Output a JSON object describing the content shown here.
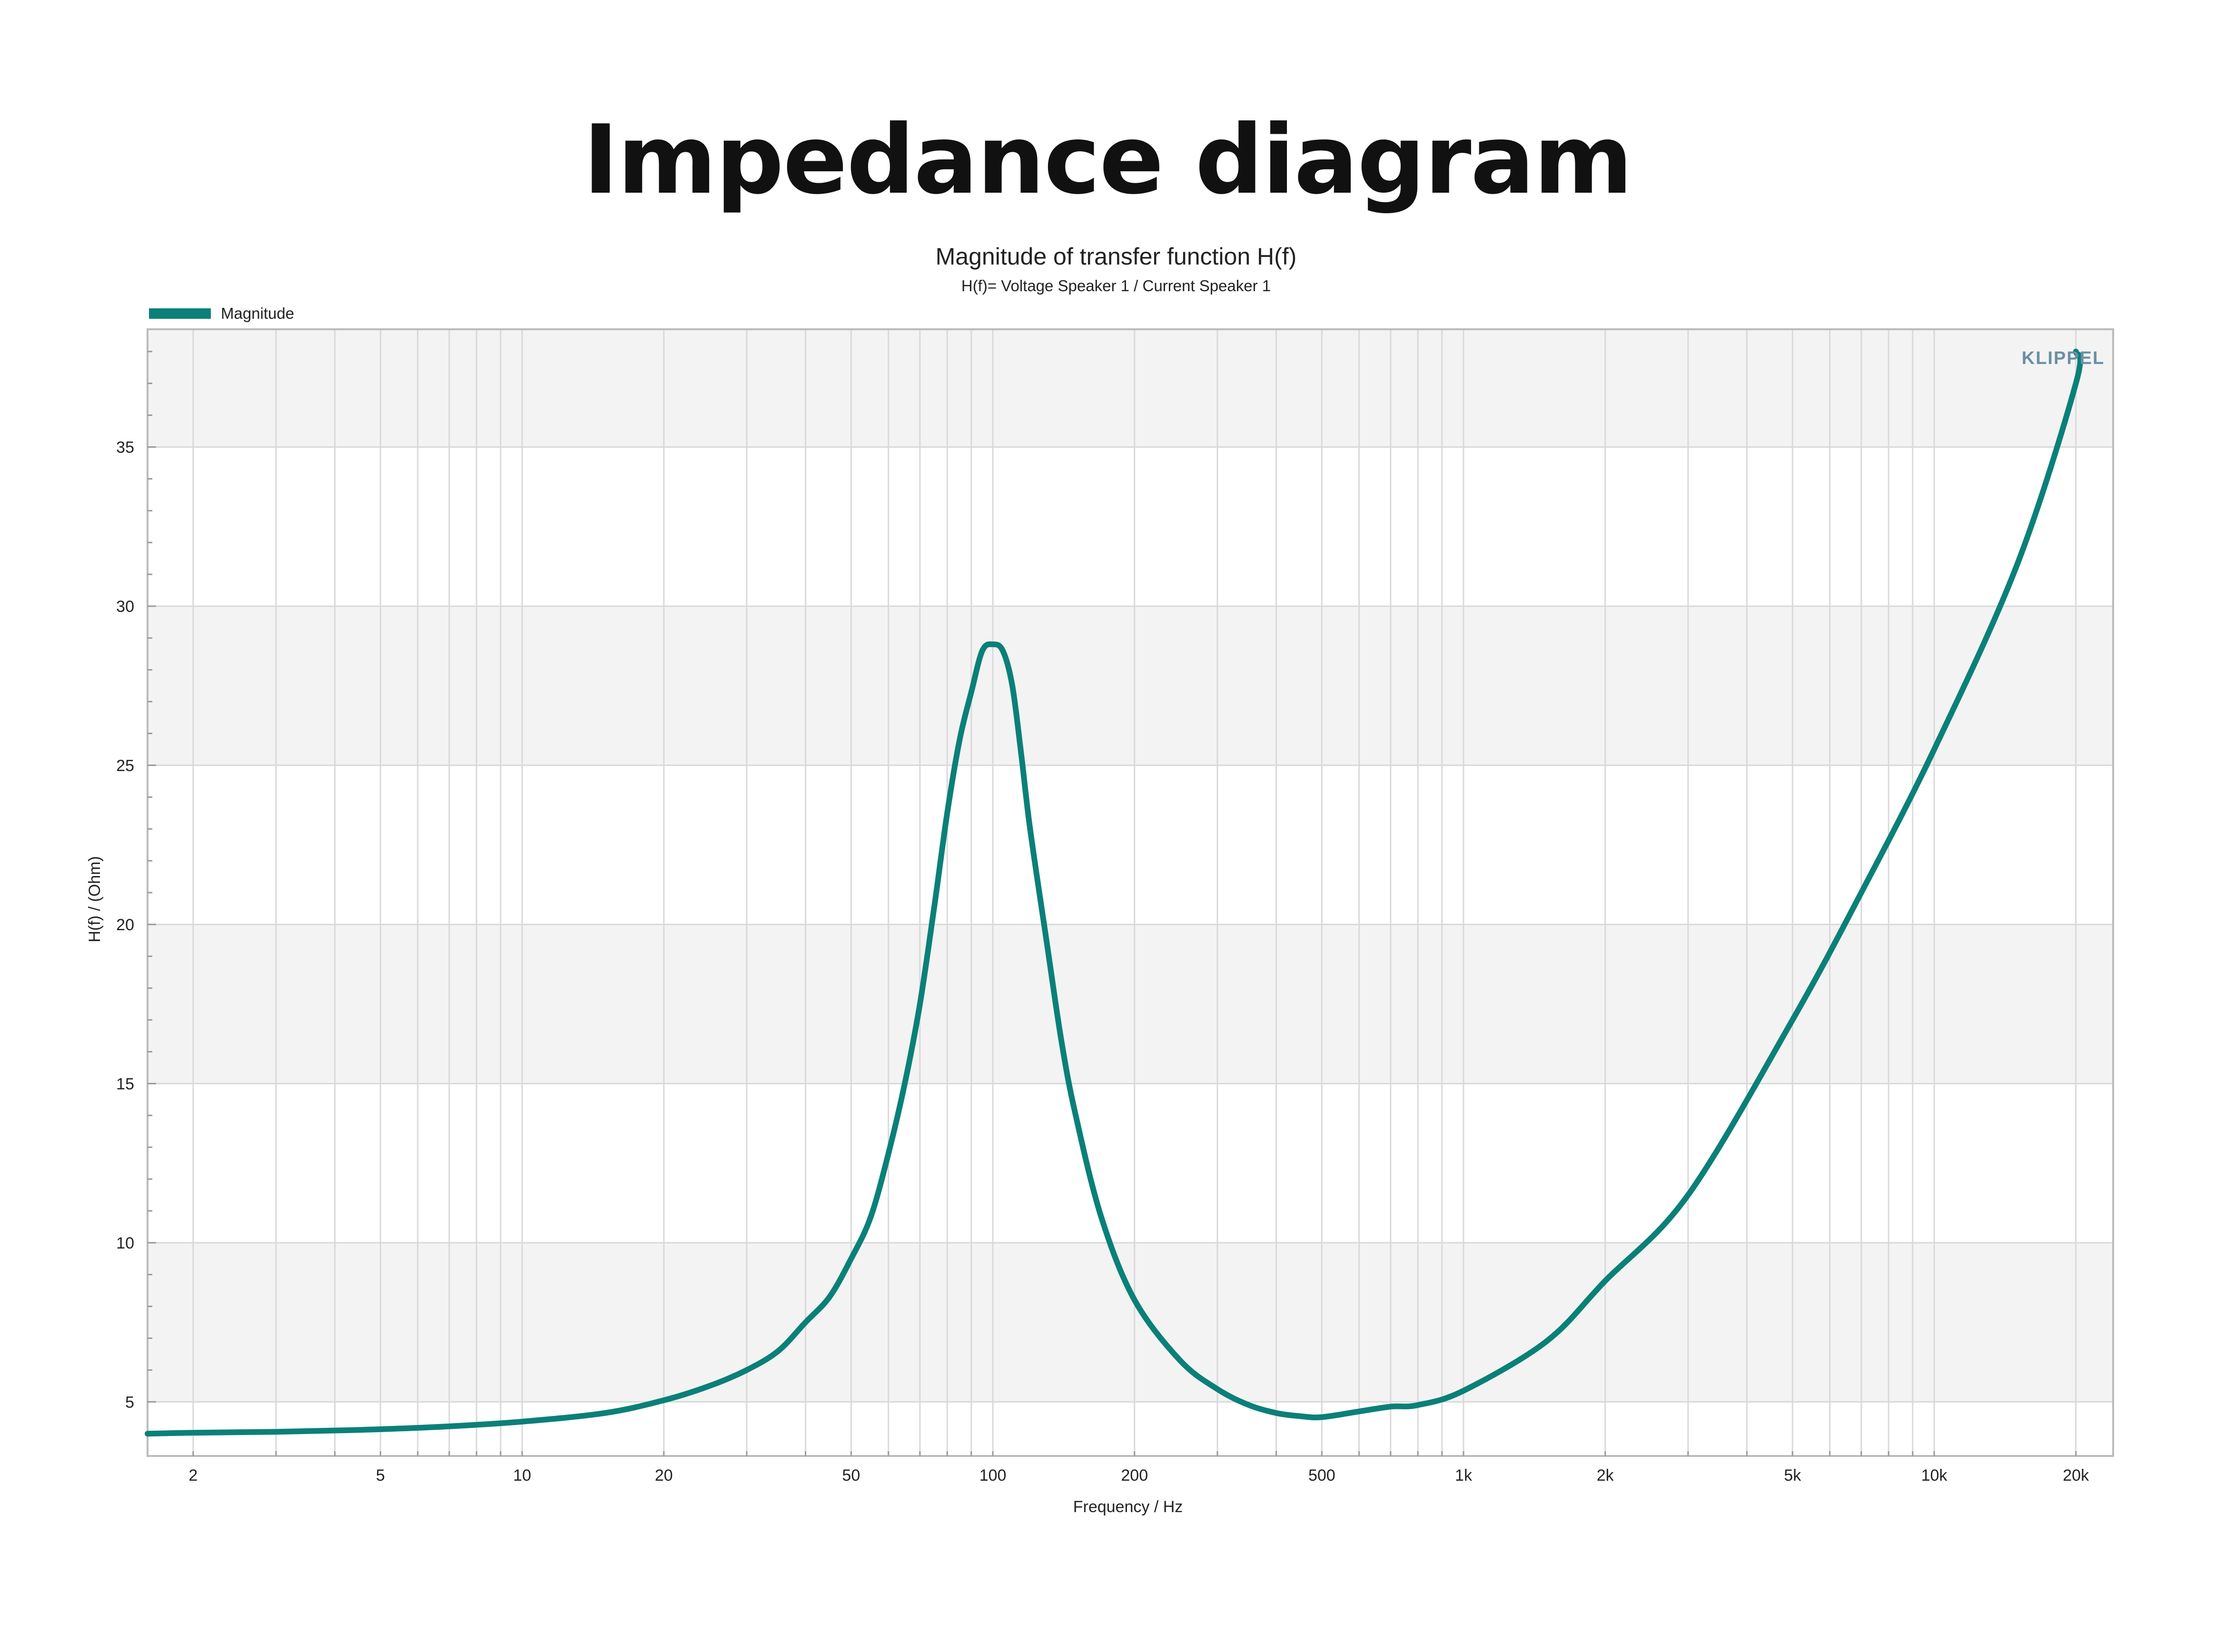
{
  "page_title": "Impedance diagram",
  "logo_text": "KLIPPEL",
  "colors": {
    "series": "#0a8078",
    "band": "#f3f3f3",
    "grid": "#d9d9d9",
    "axis": "#bbbbbb"
  },
  "chart_data": {
    "type": "line",
    "title": "Magnitude of transfer function H(f)",
    "subtitle": "H(f)= Voltage Speaker 1 / Current Speaker 1",
    "xlabel": "Frequency / Hz",
    "ylabel": "H(f) / (Ohm)",
    "xscale": "log",
    "xlim": [
      1.6,
      24000
    ],
    "ylim": [
      3.3,
      38.7
    ],
    "x_ticks": [
      2,
      5,
      10,
      20,
      50,
      100,
      200,
      500,
      1000,
      2000,
      5000,
      10000,
      20000
    ],
    "x_tick_labels": [
      "2",
      "5",
      "10",
      "20",
      "50",
      "100",
      "200",
      "500",
      "1k",
      "2k",
      "5k",
      "10k",
      "20k"
    ],
    "y_ticks": [
      5,
      10,
      15,
      20,
      25,
      30,
      35
    ],
    "y_tick_labels": [
      "5",
      "10",
      "15",
      "20",
      "25",
      "30",
      "35"
    ],
    "grid": true,
    "legend_position": "top-left",
    "series": [
      {
        "name": "Magnitude",
        "x": [
          1.6,
          2,
          3,
          4,
          5,
          7,
          10,
          15,
          20,
          25,
          30,
          35,
          40,
          45,
          50,
          55,
          60,
          65,
          70,
          75,
          80,
          85,
          90,
          95,
          100,
          105,
          110,
          115,
          120,
          130,
          140,
          150,
          170,
          200,
          250,
          300,
          350,
          400,
          450,
          500,
          600,
          700,
          800,
          1000,
          1500,
          2000,
          3000,
          5000,
          7000,
          10000,
          15000,
          20000,
          20000
        ],
        "y": [
          4.0,
          4.03,
          4.06,
          4.1,
          4.14,
          4.23,
          4.38,
          4.65,
          5.05,
          5.5,
          6.0,
          6.6,
          7.5,
          8.3,
          9.5,
          10.8,
          12.8,
          15.0,
          17.5,
          20.5,
          23.5,
          25.8,
          27.3,
          28.6,
          28.8,
          28.6,
          27.5,
          25.3,
          23.0,
          19.5,
          16.3,
          14.0,
          10.8,
          8.2,
          6.3,
          5.4,
          4.9,
          4.65,
          4.55,
          4.52,
          4.7,
          4.85,
          4.9,
          5.35,
          6.9,
          8.8,
          11.5,
          17.0,
          21.0,
          25.5,
          31.3,
          37.0,
          38.0
        ]
      }
    ]
  }
}
